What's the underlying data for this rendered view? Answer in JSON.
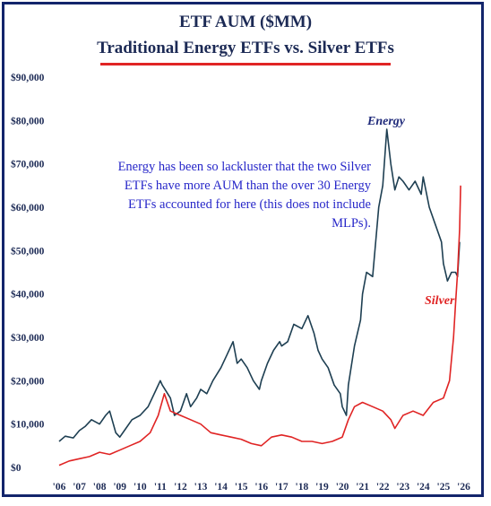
{
  "colors": {
    "energy": "#1e3f52",
    "silver": "#e02424",
    "border": "#13256b",
    "underline": "#e02424",
    "annotation": "#2727c9"
  },
  "title": "ETF AUM ($MM)",
  "subtitle": "Traditional Energy ETFs vs. Silver ETFs",
  "annotation": "Energy has been so lackluster that the two Silver ETFs have more AUM than the over 30 Energy ETFs accounted for here (this does not include MLPs).",
  "chart_data": {
    "type": "line",
    "title": "ETF AUM ($MM)",
    "subtitle": "Traditional Energy ETFs vs. Silver ETFs",
    "ylim": [
      0,
      90000
    ],
    "xlim": [
      2006,
      2026.2
    ],
    "yticks": [
      0,
      10000,
      20000,
      30000,
      40000,
      50000,
      60000,
      70000,
      80000,
      90000
    ],
    "ytick_labels": [
      "$0",
      "$10,000",
      "$20,000",
      "$30,000",
      "$40,000",
      "$50,000",
      "$60,000",
      "$70,000",
      "$80,000",
      "$90,000"
    ],
    "xticks": [
      2006,
      2007,
      2008,
      2009,
      2010,
      2011,
      2012,
      2013,
      2014,
      2015,
      2016,
      2017,
      2018,
      2019,
      2020,
      2021,
      2022,
      2023,
      2024,
      2025,
      2026
    ],
    "xtick_labels": [
      "'06",
      "'07",
      "'08",
      "'09",
      "'10",
      "'11",
      "'12",
      "'13",
      "'14",
      "'15",
      "'16",
      "'17",
      "'18",
      "'19",
      "'20",
      "'21",
      "'22",
      "'23",
      "'24",
      "'25",
      "'26"
    ],
    "grid": false,
    "series": [
      {
        "name": "Energy",
        "x": [
          2006.0,
          2006.3,
          2006.7,
          2007.0,
          2007.3,
          2007.6,
          2008.0,
          2008.3,
          2008.5,
          2008.8,
          2009.0,
          2009.3,
          2009.6,
          2010.0,
          2010.4,
          2010.8,
          2011.0,
          2011.1,
          2011.5,
          2011.7,
          2012.0,
          2012.3,
          2012.5,
          2012.8,
          2013.0,
          2013.3,
          2013.6,
          2014.0,
          2014.3,
          2014.6,
          2014.8,
          2015.0,
          2015.3,
          2015.6,
          2015.9,
          2016.0,
          2016.3,
          2016.6,
          2016.9,
          2017.0,
          2017.3,
          2017.6,
          2018.0,
          2018.3,
          2018.6,
          2018.8,
          2019.0,
          2019.3,
          2019.6,
          2019.9,
          2020.0,
          2020.2,
          2020.3,
          2020.6,
          2020.9,
          2021.0,
          2021.2,
          2021.5,
          2021.8,
          2022.0,
          2022.2,
          2022.4,
          2022.6,
          2022.8,
          2023.0,
          2023.3,
          2023.6,
          2023.9,
          2024.0,
          2024.3,
          2024.6,
          2024.9,
          2025.0,
          2025.2,
          2025.4,
          2025.6,
          2025.7,
          2025.8
        ],
        "values": [
          6000,
          7200,
          6800,
          8500,
          9500,
          11000,
          10000,
          12000,
          13000,
          8000,
          7000,
          9000,
          11000,
          12000,
          14000,
          18000,
          20000,
          19000,
          16000,
          12000,
          13000,
          17000,
          14000,
          16000,
          18000,
          17000,
          20000,
          23000,
          26000,
          29000,
          24000,
          25000,
          23000,
          20000,
          18000,
          20000,
          24000,
          27000,
          29000,
          28000,
          29000,
          33000,
          32000,
          35000,
          31000,
          27000,
          25000,
          23000,
          19000,
          17000,
          14000,
          12000,
          19000,
          28000,
          34000,
          40000,
          45000,
          44000,
          60000,
          65000,
          78000,
          70000,
          64000,
          67000,
          66000,
          64000,
          66000,
          63000,
          67000,
          60000,
          56000,
          52000,
          47000,
          43000,
          45000,
          45000,
          44000,
          52000
        ]
      },
      {
        "name": "Silver",
        "x": [
          2006.0,
          2006.5,
          2007.0,
          2007.5,
          2008.0,
          2008.5,
          2009.0,
          2009.5,
          2010.0,
          2010.5,
          2010.9,
          2011.2,
          2011.5,
          2012.0,
          2012.5,
          2013.0,
          2013.5,
          2014.0,
          2014.5,
          2015.0,
          2015.5,
          2016.0,
          2016.5,
          2017.0,
          2017.5,
          2018.0,
          2018.5,
          2019.0,
          2019.5,
          2020.0,
          2020.3,
          2020.6,
          2021.0,
          2021.5,
          2022.0,
          2022.4,
          2022.6,
          2023.0,
          2023.5,
          2024.0,
          2024.5,
          2025.0,
          2025.3,
          2025.5,
          2025.6,
          2025.7,
          2025.8,
          2025.85
        ],
        "values": [
          500,
          1500,
          2000,
          2500,
          3500,
          3000,
          4000,
          5000,
          6000,
          8000,
          12000,
          17000,
          13000,
          12000,
          11000,
          10000,
          8000,
          7500,
          7000,
          6500,
          5500,
          5000,
          7000,
          7500,
          7000,
          6000,
          6000,
          5500,
          6000,
          7000,
          11000,
          14000,
          15000,
          14000,
          13000,
          11000,
          9000,
          12000,
          13000,
          12000,
          15000,
          16000,
          20000,
          30000,
          38000,
          45000,
          55000,
          65000
        ]
      }
    ]
  }
}
